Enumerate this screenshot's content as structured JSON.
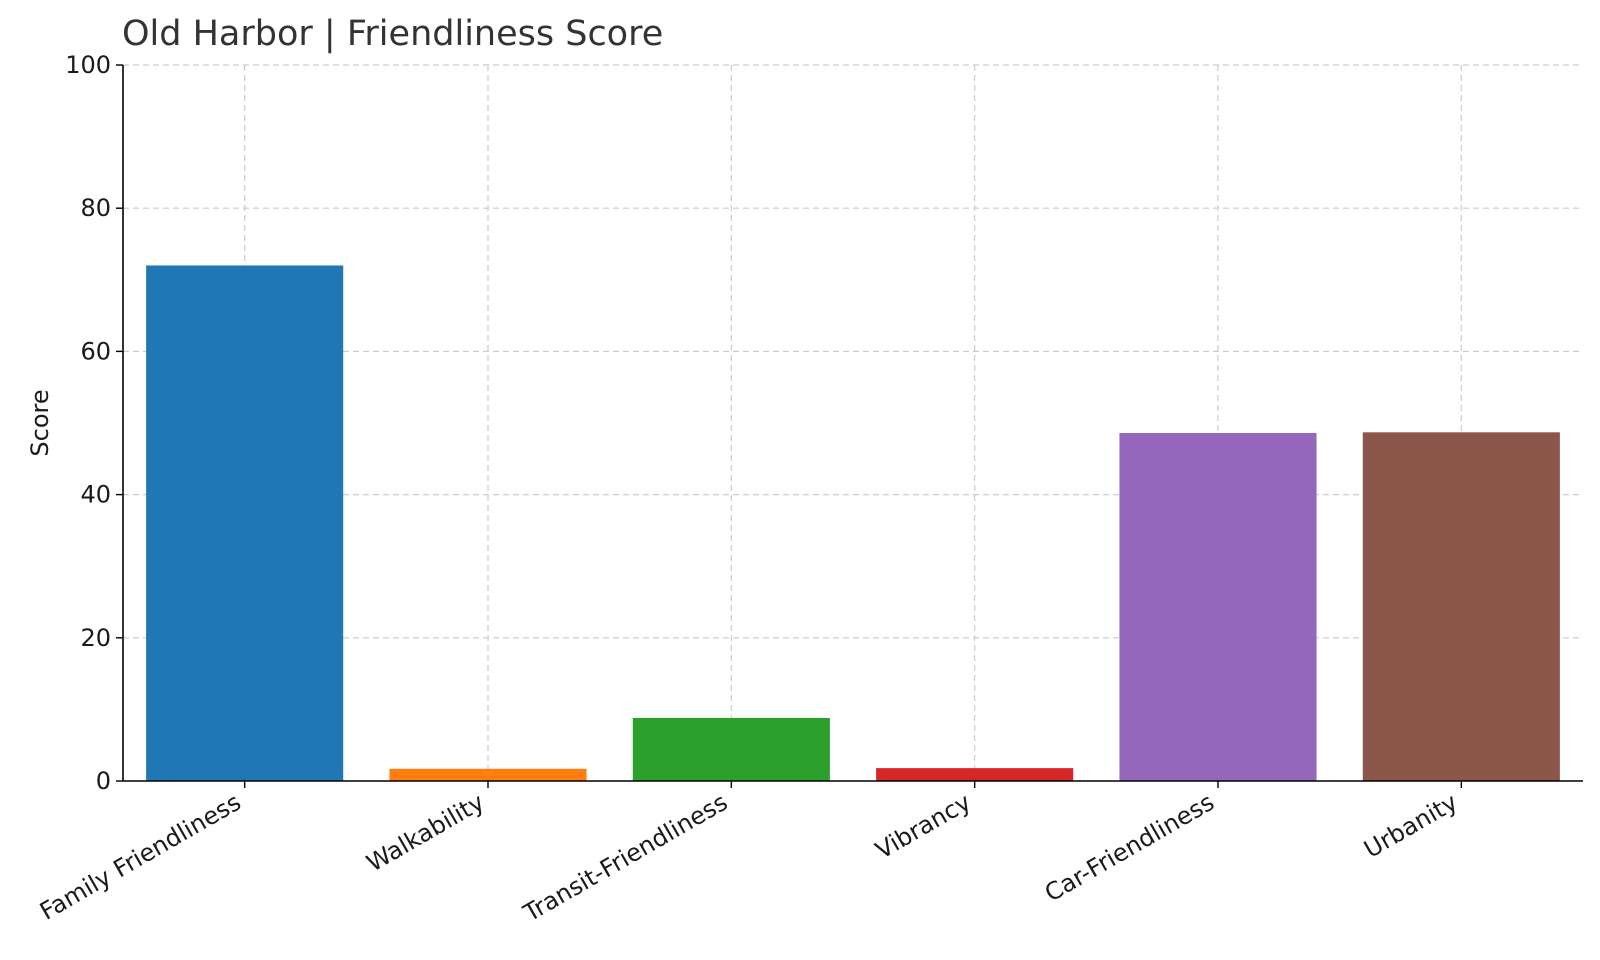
{
  "chart_data": {
    "type": "bar",
    "title": "Old Harbor | Friendliness Score",
    "xlabel": "",
    "ylabel": "Score",
    "categories": [
      "Family Friendliness",
      "Walkability",
      "Transit-Friendliness",
      "Vibrancy",
      "Car-Friendliness",
      "Urbanity"
    ],
    "values": [
      72.0,
      1.7,
      8.8,
      1.8,
      48.6,
      48.7
    ],
    "colors": [
      "#1f77b4",
      "#ff7f0e",
      "#2ca02c",
      "#d62728",
      "#9467bd",
      "#8c564b"
    ],
    "ylim": [
      0,
      100
    ],
    "yticks": [
      0,
      20,
      40,
      60,
      80,
      100
    ],
    "grid": true,
    "legend": "none"
  }
}
